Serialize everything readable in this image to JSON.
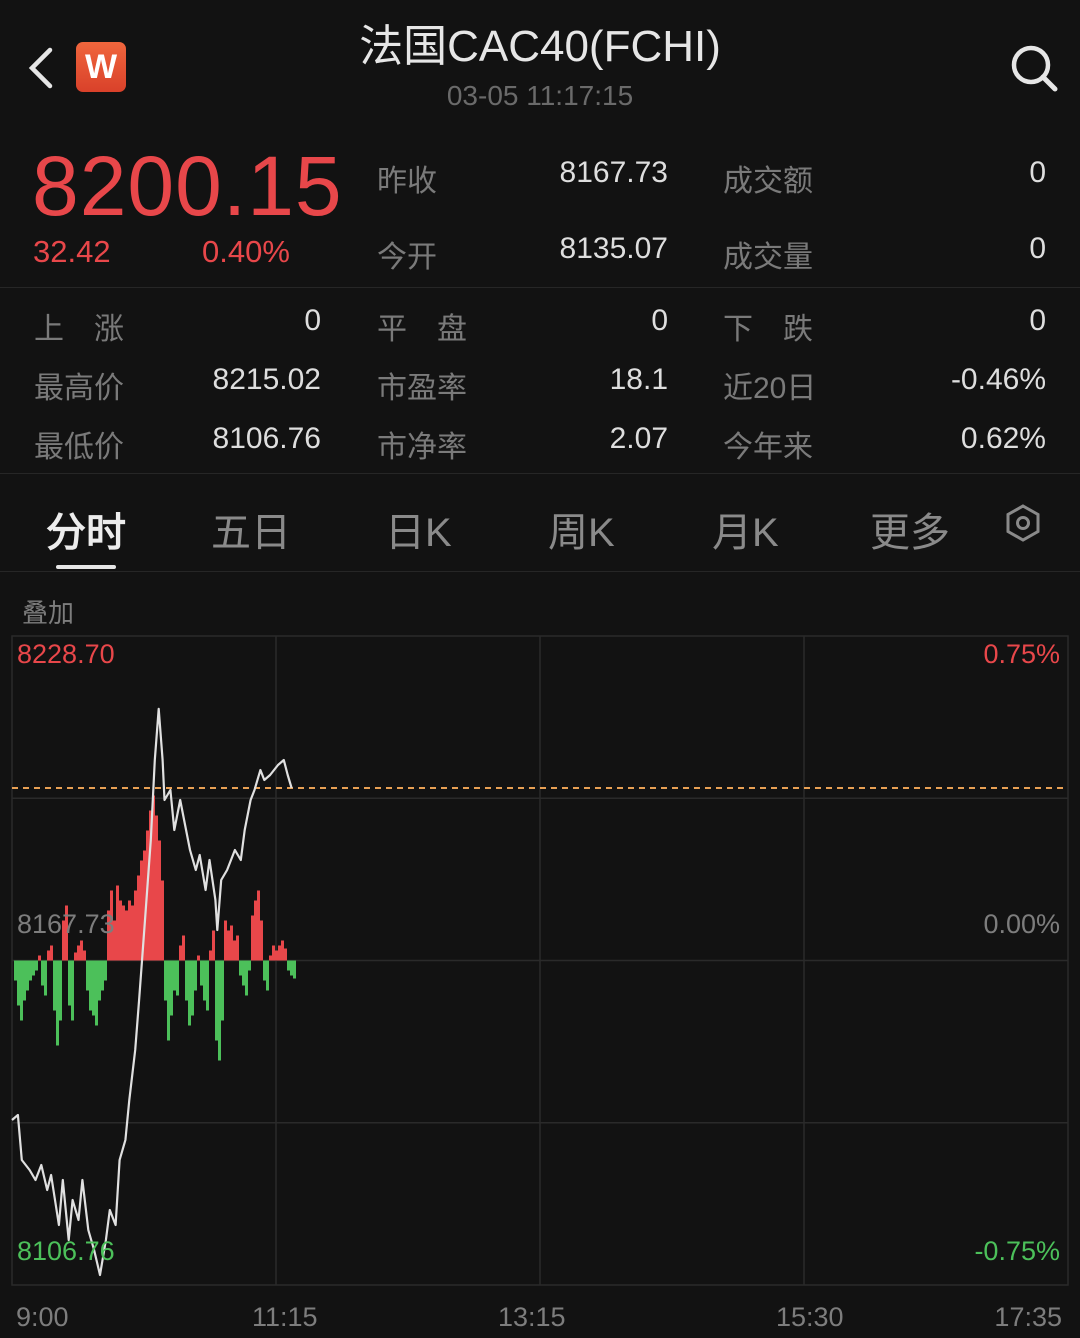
{
  "header": {
    "title": "法国CAC40(FCHI)",
    "timestamp": "03-05 11:17:15",
    "logo_text": "W",
    "icons": [
      "back-chevron-icon",
      "search-icon"
    ]
  },
  "quote": {
    "price": "8200.15",
    "change": "32.42",
    "change_pct": "0.40%",
    "fields": [
      {
        "label": "昨收",
        "value": "8167.73"
      },
      {
        "label": "成交额",
        "value": "0"
      },
      {
        "label": "今开",
        "value": "8135.07"
      },
      {
        "label": "成交量",
        "value": "0"
      }
    ]
  },
  "stats": [
    [
      {
        "label": "上　涨",
        "value": "0"
      },
      {
        "label": "平　盘",
        "value": "0"
      },
      {
        "label": "下　跌",
        "value": "0"
      }
    ],
    [
      {
        "label": "最高价",
        "value": "8215.02"
      },
      {
        "label": "市盈率",
        "value": "18.1"
      },
      {
        "label": "近20日",
        "value": "-0.46%"
      }
    ],
    [
      {
        "label": "最低价",
        "value": "8106.76"
      },
      {
        "label": "市净率",
        "value": "2.07"
      },
      {
        "label": "今年来",
        "value": "0.62%"
      }
    ]
  ],
  "tabs": [
    {
      "label": "分时",
      "active": true
    },
    {
      "label": "五日"
    },
    {
      "label": "日K"
    },
    {
      "label": "周K"
    },
    {
      "label": "月K"
    },
    {
      "label": "更多"
    }
  ],
  "overlay_label": "叠加",
  "colors": {
    "up": "#e8474a",
    "down": "#4cc05a",
    "line": "#e0e0e0",
    "ref_line": "#e8a054",
    "background": "#121212"
  },
  "chart_data": {
    "type": "line",
    "ylim": [
      8106.76,
      8228.7
    ],
    "prev_close": 8167.73,
    "current_price": 8200.15,
    "y_labels_left": {
      "top": "8228.70",
      "mid": "8167.73",
      "bottom": "8106.76"
    },
    "y_labels_right": {
      "top": "0.75%",
      "mid": "0.00%",
      "bottom": "-0.75%"
    },
    "x_ticks": [
      "9:00",
      "11:15",
      "13:15",
      "15:30",
      "17:35"
    ],
    "grid": true,
    "price": [
      [
        "9:00",
        8137.76
      ],
      [
        "9:03",
        8138.7
      ],
      [
        "9:05",
        8130.25
      ],
      [
        "9:09",
        8128.37
      ],
      [
        "9:12",
        8126.49
      ],
      [
        "9:15",
        8129.31
      ],
      [
        "9:18",
        8124.61
      ],
      [
        "9:20",
        8127.43
      ],
      [
        "9:24",
        8118.03
      ],
      [
        "9:26",
        8126.49
      ],
      [
        "9:29",
        8115.21
      ],
      [
        "9:31",
        8122.73
      ],
      [
        "9:34",
        8118.97
      ],
      [
        "9:36",
        8126.49
      ],
      [
        "9:39",
        8117.09
      ],
      [
        "9:42",
        8113.34
      ],
      [
        "9:45",
        8108.64
      ],
      [
        "9:48",
        8115.21
      ],
      [
        "9:50",
        8120.85
      ],
      [
        "9:53",
        8118.03
      ],
      [
        "9:55",
        8130.25
      ],
      [
        "9:58",
        8134.0
      ],
      [
        "10:00",
        8141.52
      ],
      [
        "10:03",
        8150.91
      ],
      [
        "10:05",
        8160.31
      ],
      [
        "10:08",
        8175.34
      ],
      [
        "10:11",
        8190.37
      ],
      [
        "10:13",
        8205.4
      ],
      [
        "10:15",
        8215.02
      ],
      [
        "10:17",
        8205.4
      ],
      [
        "10:18",
        8197.89
      ],
      [
        "10:21",
        8199.76
      ],
      [
        "10:23",
        8192.25
      ],
      [
        "10:26",
        8197.89
      ],
      [
        "10:28",
        8194.13
      ],
      [
        "10:31",
        8188.49
      ],
      [
        "10:34",
        8184.73
      ],
      [
        "10:36",
        8187.55
      ],
      [
        "10:39",
        8180.98
      ],
      [
        "10:41",
        8186.61
      ],
      [
        "10:44",
        8179.1
      ],
      [
        "10:45",
        8173.46
      ],
      [
        "10:47",
        8182.85
      ],
      [
        "10:50",
        8184.73
      ],
      [
        "10:54",
        8188.49
      ],
      [
        "10:57",
        8186.61
      ],
      [
        "10:59",
        8192.25
      ],
      [
        "11:02",
        8197.89
      ],
      [
        "11:04",
        8199.76
      ],
      [
        "11:07",
        8203.52
      ],
      [
        "11:09",
        8201.64
      ],
      [
        "11:12",
        8202.58
      ],
      [
        "11:16",
        8204.46
      ],
      [
        "11:19",
        8205.4
      ],
      [
        "11:21",
        8202.58
      ],
      [
        "11:23",
        8200.15
      ]
    ],
    "volume_bars": [
      -20,
      -45,
      -60,
      -40,
      -30,
      -20,
      -15,
      -10,
      5,
      -25,
      -35,
      10,
      15,
      -50,
      -85,
      -60,
      40,
      55,
      -45,
      -60,
      8,
      15,
      20,
      10,
      -30,
      -50,
      -55,
      -65,
      -40,
      -30,
      -20,
      50,
      70,
      40,
      75,
      60,
      55,
      50,
      60,
      55,
      70,
      85,
      100,
      110,
      130,
      150,
      165,
      145,
      120,
      80,
      -40,
      -80,
      -55,
      -30,
      -35,
      15,
      25,
      -40,
      -65,
      -55,
      -30,
      5,
      -25,
      -40,
      -50,
      10,
      30,
      -80,
      -100,
      -60,
      40,
      30,
      35,
      20,
      25,
      -15,
      -25,
      -35,
      -10,
      45,
      60,
      70,
      40,
      -20,
      -30,
      5,
      15,
      10,
      15,
      20,
      12,
      -10,
      -15,
      -18
    ]
  }
}
